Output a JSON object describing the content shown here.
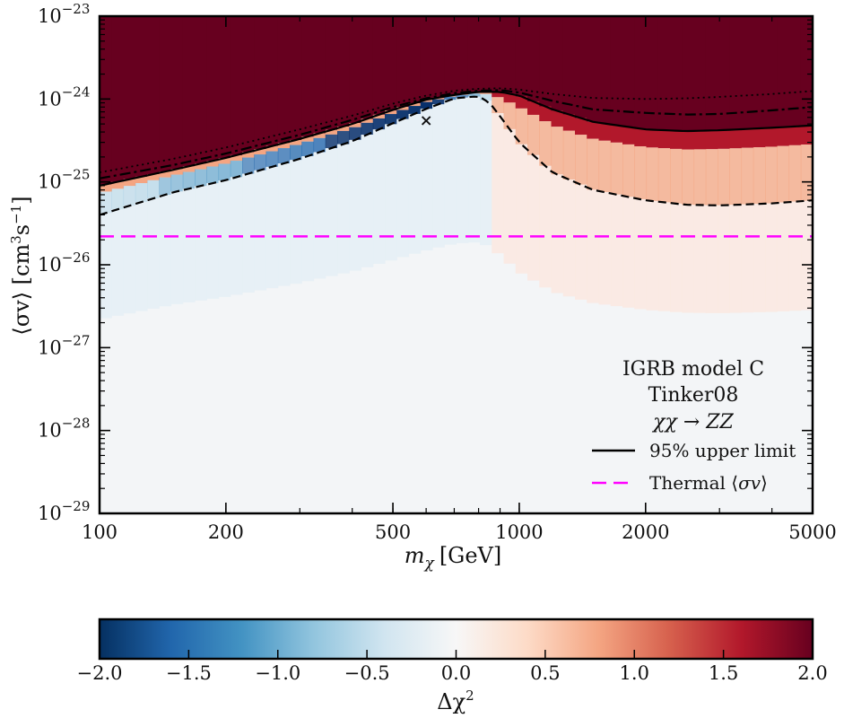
{
  "chart_data": {
    "type": "heatmap",
    "xlabel_main": "m",
    "xlabel_sub": "χ",
    "xlabel_unit": "[GeV]",
    "ylabel_main": "⟨σv⟩ [cm",
    "ylabel_exp1": "3",
    "ylabel_mid": "s",
    "ylabel_exp2": "−1",
    "ylabel_end": "]",
    "xscale": "log",
    "yscale": "log",
    "xlim": [
      100,
      5000
    ],
    "ylim": [
      1e-29,
      1e-23
    ],
    "xticks": [
      {
        "value": 100,
        "label": "100"
      },
      {
        "value": 200,
        "label": "200"
      },
      {
        "value": 500,
        "label": "500"
      },
      {
        "value": 1000,
        "label": "1000"
      },
      {
        "value": 2000,
        "label": "2000"
      },
      {
        "value": 5000,
        "label": "5000"
      }
    ],
    "yticks": [
      {
        "value": 1e-29,
        "base": "10",
        "exp": "−29"
      },
      {
        "value": 1e-28,
        "base": "10",
        "exp": "−28"
      },
      {
        "value": 1e-27,
        "base": "10",
        "exp": "−27"
      },
      {
        "value": 1e-26,
        "base": "10",
        "exp": "−26"
      },
      {
        "value": 1e-25,
        "base": "10",
        "exp": "−25"
      },
      {
        "value": 1e-24,
        "base": "10",
        "exp": "−24"
      },
      {
        "value": 1e-23,
        "base": "10",
        "exp": "−23"
      }
    ],
    "annotations": [
      "IGRB model C",
      "Tinker08",
      "χχ → ZZ"
    ],
    "best_fit_marker": {
      "x": 600,
      "y": 5.5e-25,
      "symbol": "×"
    },
    "thermal_cross_section": 2.2e-26,
    "series": [
      {
        "name": "95% upper limit",
        "style": "solid",
        "x": [
          100,
          150,
          200,
          300,
          400,
          500,
          600,
          700,
          800,
          900,
          1000,
          1200,
          1500,
          2000,
          2500,
          3000,
          4000,
          5000
        ],
        "y": [
          9e-26,
          1.4e-25,
          1.95e-25,
          3.3e-25,
          5e-25,
          7.4e-25,
          9.8e-25,
          1.12e-24,
          1.22e-24,
          1.22e-24,
          1.1e-24,
          7.5e-25,
          5.3e-25,
          4.3e-25,
          4.1e-25,
          4.2e-25,
          4.5e-25,
          4.8e-25
        ]
      },
      {
        "name": "",
        "style": "dashed",
        "x": [
          100,
          150,
          200,
          300,
          400,
          500,
          600,
          700,
          800,
          850,
          900,
          1000,
          1200,
          1500,
          2000,
          2500,
          3000,
          4000,
          5000
        ],
        "y": [
          4e-26,
          7.5e-26,
          1.05e-25,
          1.9e-25,
          3.1e-25,
          5.1e-25,
          7.6e-25,
          1.02e-24,
          1.08e-24,
          9e-25,
          6.2e-25,
          3e-25,
          1.3e-25,
          8e-26,
          6e-26,
          5.3e-26,
          5.2e-26,
          5.5e-26,
          6e-26
        ]
      },
      {
        "name": "",
        "style": "dashdot",
        "x": [
          100,
          150,
          200,
          300,
          400,
          500,
          600,
          700,
          800,
          900,
          1000,
          1200,
          1500,
          2000,
          2500,
          3000,
          4000,
          5000
        ],
        "y": [
          1.1e-25,
          1.6e-25,
          2.2e-25,
          3.7e-25,
          5.6e-25,
          8e-25,
          1.02e-24,
          1.18e-24,
          1.26e-24,
          1.28e-24,
          1.2e-24,
          9.5e-25,
          7.5e-25,
          6.8e-25,
          6.5e-25,
          6.6e-25,
          7.3e-25,
          8e-25
        ]
      },
      {
        "name": "",
        "style": "dotted",
        "x": [
          100,
          150,
          200,
          300,
          400,
          500,
          600,
          700,
          800,
          900,
          1000,
          1200,
          1500,
          2000,
          2500,
          3000,
          4000,
          5000
        ],
        "y": [
          1.3e-25,
          1.9e-25,
          2.6e-25,
          4.3e-25,
          6.3e-25,
          8.8e-25,
          1.1e-24,
          1.26e-24,
          1.33e-24,
          1.35e-24,
          1.3e-24,
          1.15e-24,
          1.03e-24,
          1e-24,
          1.02e-24,
          1.06e-24,
          1.15e-24,
          1.25e-24
        ]
      }
    ],
    "legend": {
      "position": "lower-right",
      "entries": [
        {
          "label": "95% upper limit",
          "style": "solid",
          "color": "#000000"
        },
        {
          "label_pre": "Thermal ⟨",
          "label_mid": "σv",
          "label_post": "⟩",
          "style": "dashed",
          "color": "#ff00ff"
        }
      ]
    },
    "colorbar": {
      "label_main": "Δχ",
      "label_exp": "2",
      "range": [
        -2.0,
        2.0
      ],
      "ticks": [
        "−2.0",
        "−1.5",
        "−1.0",
        "−0.5",
        "0.0",
        "0.5",
        "1.0",
        "1.5",
        "2.0"
      ],
      "colormap": "RdBu_r",
      "colors": [
        "#053061",
        "#2166ac",
        "#4393c3",
        "#92c5de",
        "#d1e5f0",
        "#f7f7f7",
        "#fddbc7",
        "#f4a582",
        "#d6604d",
        "#b2182b",
        "#67001f"
      ]
    },
    "grid": false
  }
}
